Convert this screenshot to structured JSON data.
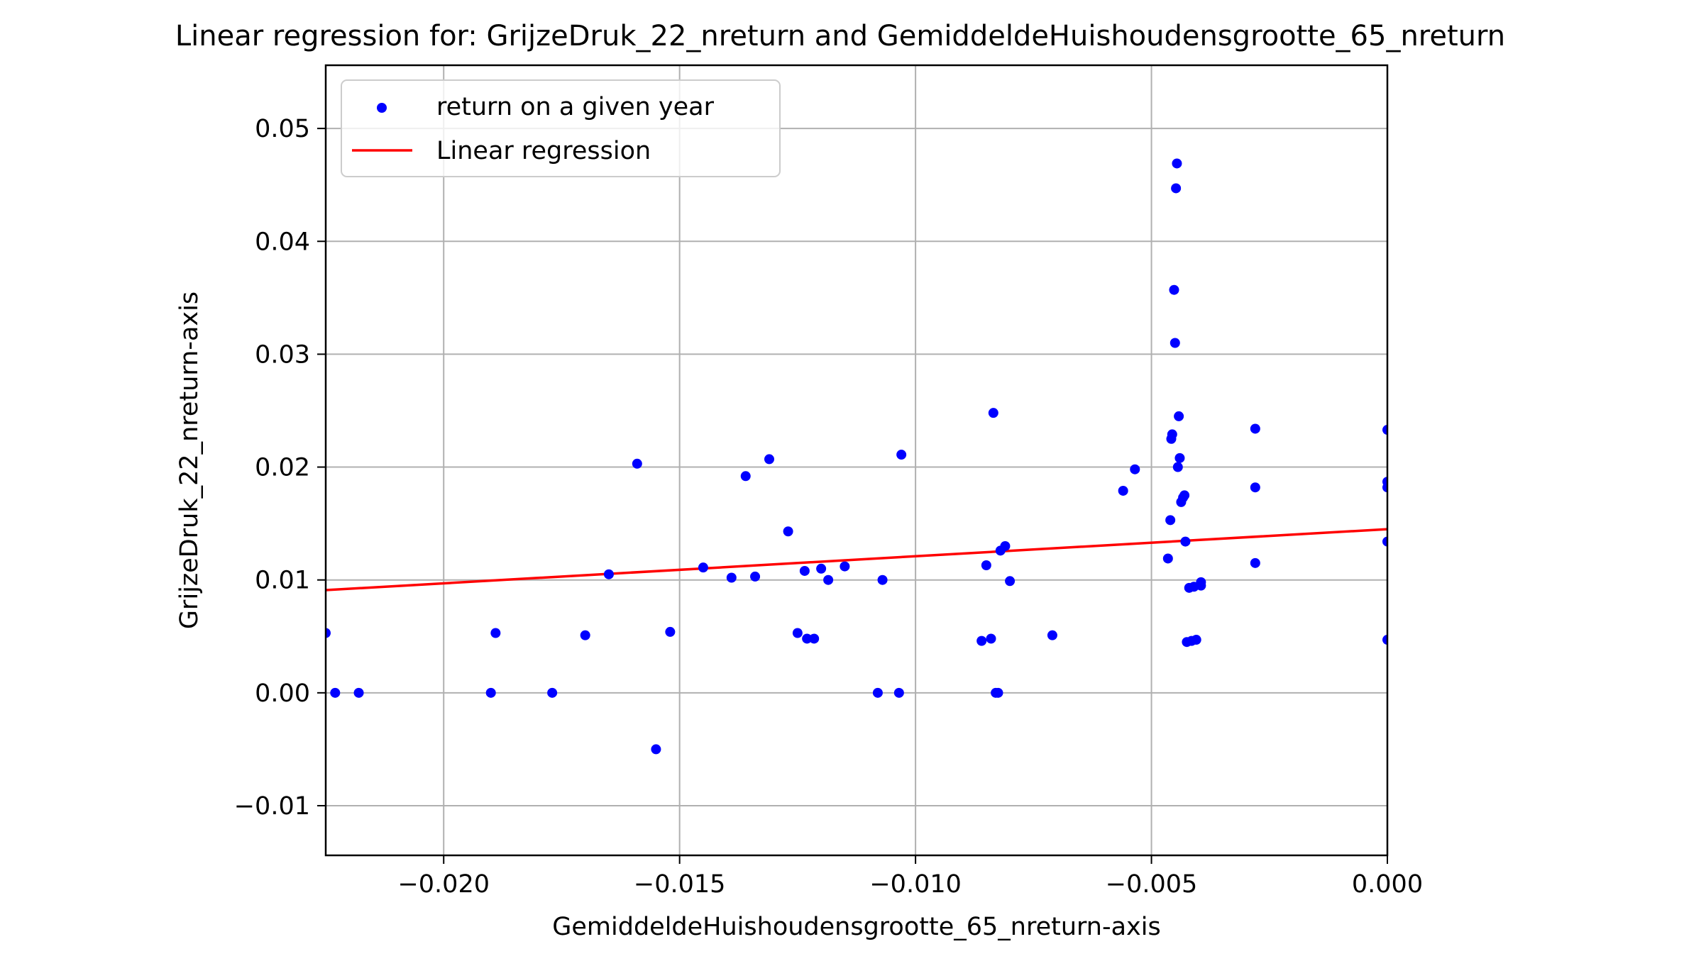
{
  "chart_data": {
    "type": "scatter",
    "title": "Linear regression for: GrijzeDruk_22_nreturn and GemiddeldeHuishoudensgrootte_65_nreturn",
    "xlabel": "GemiddeldeHuishoudensgrootte_65_nreturn-axis",
    "ylabel": "GrijzeDruk_22_nreturn-axis",
    "xlim": [
      -0.0225,
      0.0
    ],
    "ylim": [
      -0.0144,
      0.0556
    ],
    "grid": true,
    "legend_position": "top-left",
    "x_ticks": [
      -0.02,
      -0.015,
      -0.01,
      -0.005,
      0.0
    ],
    "x_tick_labels": [
      "−0.020",
      "−0.015",
      "−0.010",
      "−0.005",
      "0.000"
    ],
    "y_ticks": [
      -0.01,
      0.0,
      0.01,
      0.02,
      0.03,
      0.04,
      0.05
    ],
    "y_tick_labels": [
      "−0.01",
      "0.00",
      "0.01",
      "0.02",
      "0.03",
      "0.04",
      "0.05"
    ],
    "series": [
      {
        "name": "return on a given year",
        "kind": "scatter",
        "color": "#0000ff",
        "points": [
          [
            -0.0225,
            0.0053
          ],
          [
            -0.0223,
            0.0
          ],
          [
            -0.0218,
            0.0
          ],
          [
            -0.019,
            0.0
          ],
          [
            -0.0189,
            0.0053
          ],
          [
            -0.0177,
            0.0
          ],
          [
            -0.017,
            0.0051
          ],
          [
            -0.0165,
            0.0105
          ],
          [
            -0.0159,
            0.0203
          ],
          [
            -0.0155,
            -0.005
          ],
          [
            -0.0152,
            0.0054
          ],
          [
            -0.0145,
            0.0111
          ],
          [
            -0.0139,
            0.0102
          ],
          [
            -0.0136,
            0.0192
          ],
          [
            -0.0134,
            0.0103
          ],
          [
            -0.0131,
            0.0207
          ],
          [
            -0.0127,
            0.0143
          ],
          [
            -0.0125,
            0.0053
          ],
          [
            -0.01235,
            0.0108
          ],
          [
            -0.0123,
            0.0048
          ],
          [
            -0.01215,
            0.0048
          ],
          [
            -0.012,
            0.011
          ],
          [
            -0.01185,
            0.01
          ],
          [
            -0.0115,
            0.0112
          ],
          [
            -0.0108,
            0.0
          ],
          [
            -0.0107,
            0.01
          ],
          [
            -0.01035,
            0.0
          ],
          [
            -0.0103,
            0.0211
          ],
          [
            -0.0086,
            0.0046
          ],
          [
            -0.0085,
            0.0113
          ],
          [
            -0.0084,
            0.0048
          ],
          [
            -0.00835,
            0.0248
          ],
          [
            -0.0083,
            0.0
          ],
          [
            -0.00825,
            0.0
          ],
          [
            -0.0082,
            0.0126
          ],
          [
            -0.0081,
            0.013
          ],
          [
            -0.008,
            0.0099
          ],
          [
            -0.0071,
            0.0051
          ],
          [
            -0.0056,
            0.0179
          ],
          [
            -0.00535,
            0.0198
          ],
          [
            -0.00465,
            0.0119
          ],
          [
            -0.0046,
            0.0153
          ],
          [
            -0.00458,
            0.0225
          ],
          [
            -0.00456,
            0.0229
          ],
          [
            -0.00452,
            0.0357
          ],
          [
            -0.0045,
            0.031
          ],
          [
            -0.00448,
            0.0447
          ],
          [
            -0.00446,
            0.0469
          ],
          [
            -0.00444,
            0.02
          ],
          [
            -0.00442,
            0.0245
          ],
          [
            -0.0044,
            0.0208
          ],
          [
            -0.00437,
            0.0169
          ],
          [
            -0.00433,
            0.0173
          ],
          [
            -0.0043,
            0.0175
          ],
          [
            -0.00428,
            0.0134
          ],
          [
            -0.00425,
            0.0045
          ],
          [
            -0.0042,
            0.0093
          ],
          [
            -0.00415,
            0.0046
          ],
          [
            -0.0041,
            0.0094
          ],
          [
            -0.00405,
            0.0047
          ],
          [
            -0.00395,
            0.0095
          ],
          [
            -0.00395,
            0.0098
          ],
          [
            -0.0028,
            0.0234
          ],
          [
            -0.0028,
            0.0115
          ],
          [
            -0.0028,
            0.0182
          ],
          [
            0.0,
            0.0233
          ],
          [
            0.0,
            0.0187
          ],
          [
            0.0,
            0.0182
          ],
          [
            0.0,
            0.0134
          ],
          [
            0.0,
            0.0047
          ]
        ]
      },
      {
        "name": "Linear regression",
        "kind": "line",
        "color": "#ff0000",
        "x": [
          -0.0225,
          0.0
        ],
        "y": [
          0.0091,
          0.0145
        ]
      }
    ]
  }
}
